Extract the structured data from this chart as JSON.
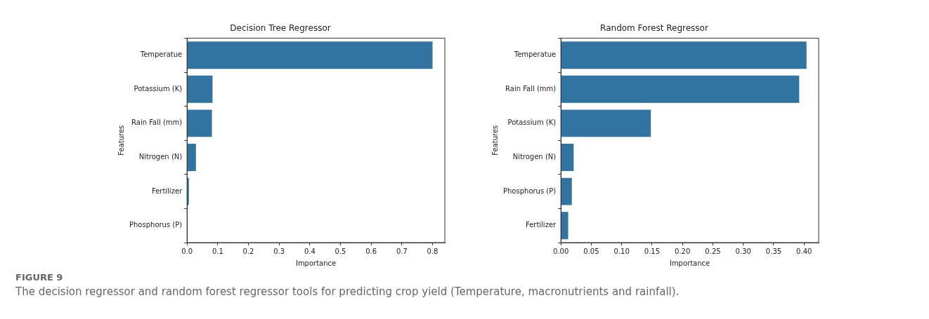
{
  "chart_data": [
    {
      "type": "bar",
      "orientation": "horizontal",
      "title": "Decision Tree Regressor",
      "xlabel": "Importance",
      "ylabel": "Features",
      "categories": [
        "Temperatue",
        "Potassium (K)",
        "Rain Fall (mm)",
        "Nitrogen (N)",
        "Fertilizer",
        "Phosphorus (P)"
      ],
      "values": [
        0.8,
        0.083,
        0.081,
        0.029,
        0.006,
        0
      ],
      "color": "#3274a1",
      "xlim": [
        0,
        0.84
      ],
      "xticks": [
        {
          "value": 0,
          "label": "0.0"
        },
        0.1,
        0.2,
        0.3,
        0.4,
        0.5,
        0.6,
        0.7,
        0.8
      ],
      "grid": false
    },
    {
      "type": "bar",
      "orientation": "horizontal",
      "title": "Random Forest Regressor",
      "xlabel": "Importance",
      "ylabel": "Features",
      "categories": [
        "Temperatue",
        "Rain Fall (mm)",
        "Potassium (K)",
        "Nitrogen (N)",
        "Phosphorus (P)",
        "Fertilizer"
      ],
      "values": [
        0.404,
        0.392,
        0.148,
        0.021,
        0.018,
        0.012
      ],
      "color": "#3274a1",
      "xlim": [
        0,
        0.424
      ],
      "xticks": [
        {
          "value": 0,
          "label": "0.00"
        },
        {
          "value": 0.05,
          "label": "0.05"
        },
        {
          "value": 0.1,
          "label": "0.10"
        },
        {
          "value": 0.15,
          "label": "0.15"
        },
        {
          "value": 0.2,
          "label": "0.20"
        },
        {
          "value": 0.25,
          "label": "0.25"
        },
        {
          "value": 0.3,
          "label": "0.30"
        },
        {
          "value": 0.35,
          "label": "0.35"
        },
        {
          "value": 0.4,
          "label": "0.40"
        }
      ],
      "grid": false,
      "annotations": [
        "FIGURE 9",
        "The decision regressor and random forest regressor tools for predicting crop yield (Temperature, macronutrients and rainfall)."
      ]
    }
  ]
}
